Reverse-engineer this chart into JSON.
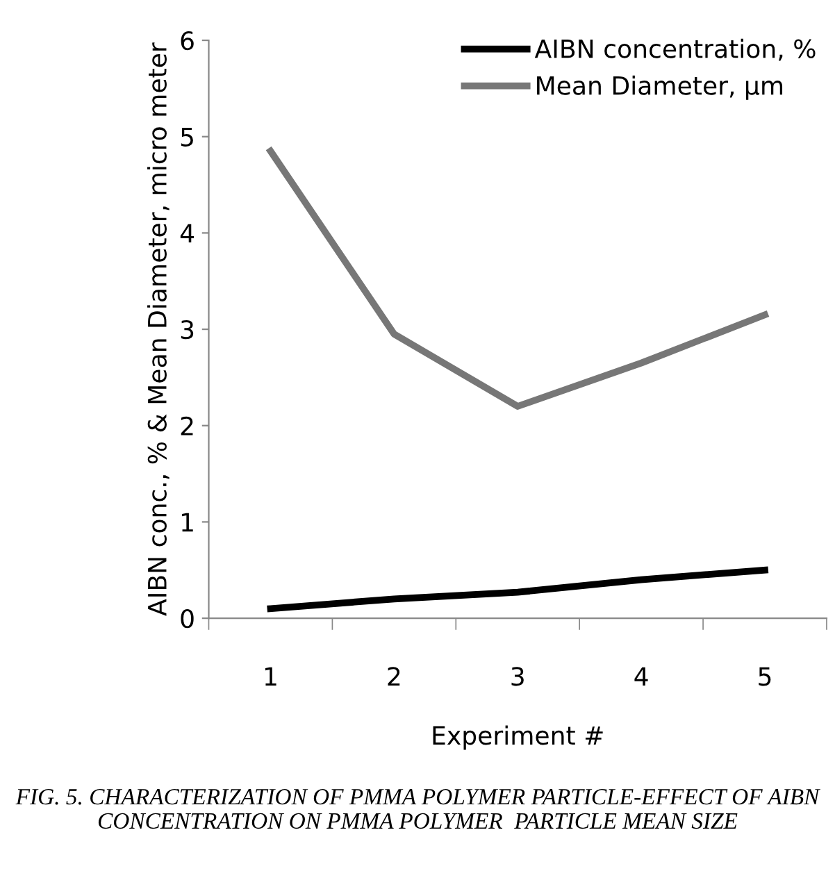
{
  "chart_data": {
    "type": "line",
    "xlabel": "Experiment #",
    "ylabel": "AIBN conc., % & Mean Diameter, micro meter",
    "categories": [
      "1",
      "2",
      "3",
      "4",
      "5"
    ],
    "series": [
      {
        "name": "AIBN concentration, %",
        "color": "#000000",
        "values": [
          0.1,
          0.2,
          0.27,
          0.4,
          0.5
        ]
      },
      {
        "name": "Mean Diameter, µm",
        "color": "#777777",
        "values": [
          4.85,
          2.95,
          2.2,
          2.65,
          3.15
        ]
      }
    ],
    "ylim": [
      0,
      6
    ],
    "yticks": [
      0,
      1,
      2,
      3,
      4,
      5,
      6
    ],
    "grid": false,
    "legend": "top right",
    "marker": "none",
    "line_style": "solid",
    "annotations": [
      "FIG. 5. CHARACTERIZATION OF PMMA POLYMER PARTICLE-EFFECT OF AIBN CONCENTRATION ON PMMA POLYMER  PARTICLE MEAN SIZE"
    ]
  }
}
